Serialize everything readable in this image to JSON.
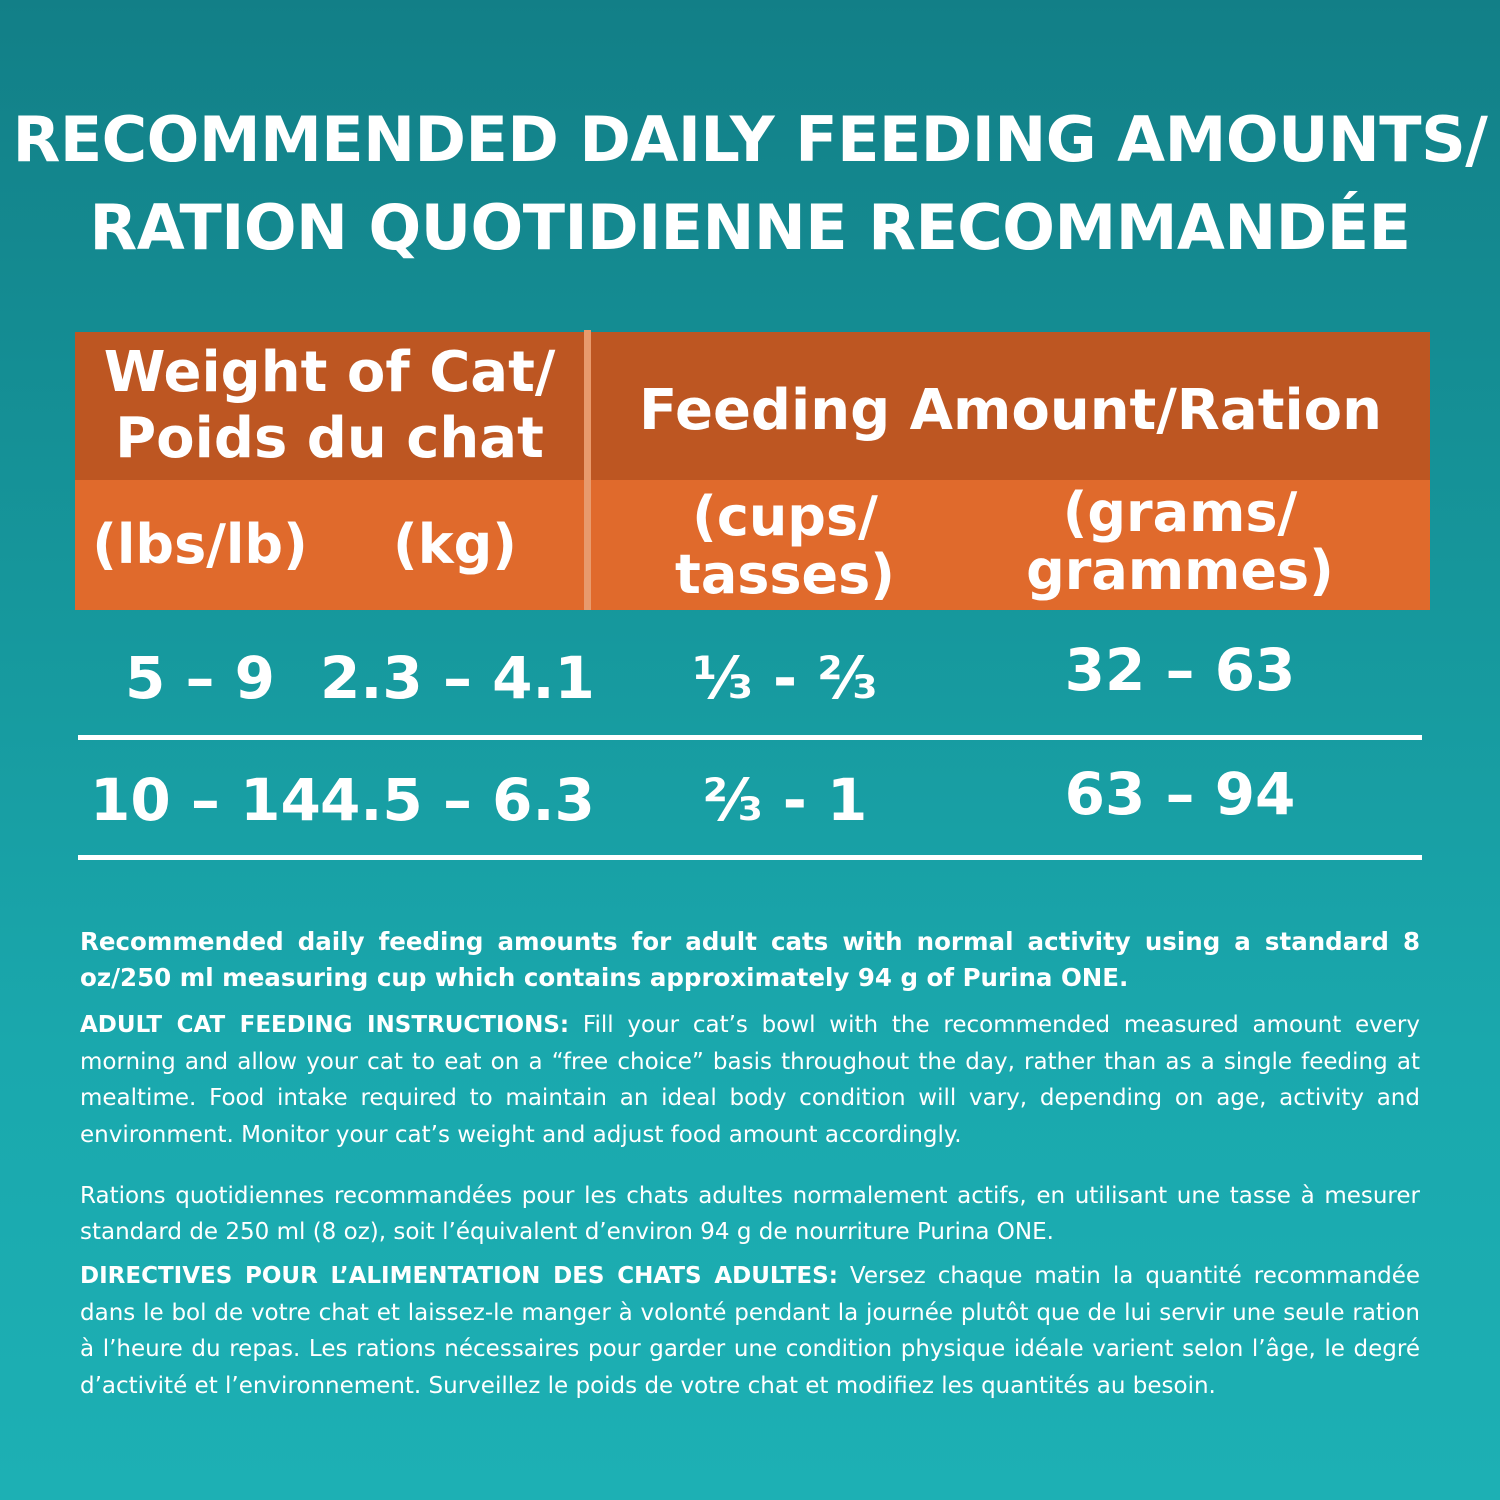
{
  "title": {
    "line1": "RECOMMENDED DAILY FEEDING AMOUNTS/",
    "line2": "RATION QUOTIDIENNE RECOMMANDÉE"
  },
  "table": {
    "weight_header_line1": "Weight of Cat/",
    "weight_header_line2": "Poids du chat",
    "feeding_header": "Feeding Amount/Ration",
    "units": {
      "lbs": "(lbs/lb)",
      "kg": "(kg)",
      "cups_line1": "(cups/",
      "cups_line2": "tasses)",
      "grams_line1": "(grams/",
      "grams_line2": "grammes)"
    },
    "rows": [
      {
        "lbs": "5 – 9",
        "kg": "2.3 – 4.1",
        "cups": "⅓ - ⅔",
        "grams": "32 – 63"
      },
      {
        "lbs": "10 – 14",
        "kg": "4.5 – 6.3",
        "cups": "⅔ - 1",
        "grams": "63 – 94"
      }
    ]
  },
  "notes": {
    "english_intro": "Recommended daily feeding amounts for adult cats with normal activity using a standard 8 oz/250 ml measuring cup which contains approximately 94 g of Purina ONE.",
    "english_instructions_label": "ADULT CAT FEEDING INSTRUCTIONS:",
    "english_instructions": "Fill your cat’s bowl with the recommended measured amount every morning and allow your cat to eat on a “free choice” basis throughout the day, rather than as a single feeding at mealtime. Food intake required to maintain an ideal body condition will vary, depending on age, activity and environment. Monitor your cat’s weight and adjust food amount accordingly.",
    "french_intro": "Rations quotidiennes recommandées pour les chats adultes normalement actifs, en utilisant une tasse à mesurer standard de 250 ml (8 oz), soit l’équivalent d’environ 94 g de nourriture Purina ONE.",
    "french_instructions_label": "DIRECTIVES POUR L’ALIMENTATION DES CHATS ADULTES:",
    "french_instructions": "Versez chaque matin la quantité recommandée dans le bol de votre chat et laissez-le manger à volonté pendant la journée plutôt que de lui servir une seule ration à l’heure du repas. Les rations nécessaires pour garder une condition physique idéale varient selon l’âge, le degré d’activité et l’environnement. Surveillez le poids de votre chat et modifiez les quantités au besoin."
  },
  "colors": {
    "background_top": "#127f87",
    "background_bottom": "#1db0b4",
    "header_dark": "#bd5622",
    "header_light": "#e06a2c"
  }
}
